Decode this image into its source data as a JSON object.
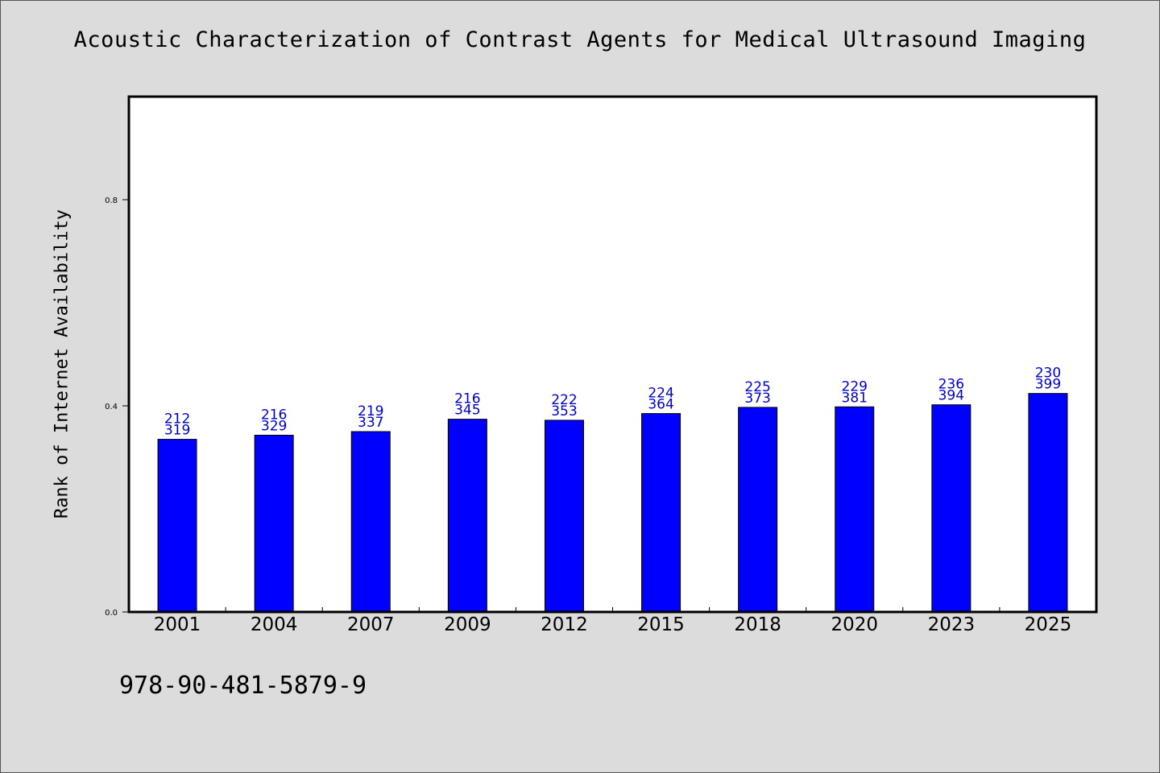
{
  "chart_data": {
    "type": "bar",
    "title": "Acoustic Characterization of Contrast Agents for Medical Ultrasound Imaging",
    "xlabel": "",
    "ylabel": "Rank of Internet Availability",
    "categories": [
      "2001",
      "2004",
      "2007",
      "2009",
      "2012",
      "2015",
      "2018",
      "2020",
      "2023",
      "2025"
    ],
    "values": [
      0.335,
      0.343,
      0.35,
      0.374,
      0.372,
      0.385,
      0.397,
      0.398,
      0.402,
      0.424
    ],
    "label_top": [
      "212",
      "216",
      "219",
      "216",
      "222",
      "224",
      "225",
      "229",
      "236",
      "230"
    ],
    "label_bottom": [
      "319",
      "329",
      "337",
      "345",
      "353",
      "364",
      "373",
      "381",
      "394",
      "399"
    ],
    "ylim": [
      0,
      1.0
    ],
    "yticks": [
      "0.0",
      "0.4",
      "0.8"
    ],
    "ytick_values": [
      0.0,
      0.4,
      0.8
    ],
    "grid": false,
    "colors": {
      "bar": "#0000ff",
      "label": "#0000cc",
      "background": "#dcdcdc",
      "plot": "#ffffff"
    }
  },
  "footer": {
    "isbn": "978-90-481-5879-9"
  }
}
